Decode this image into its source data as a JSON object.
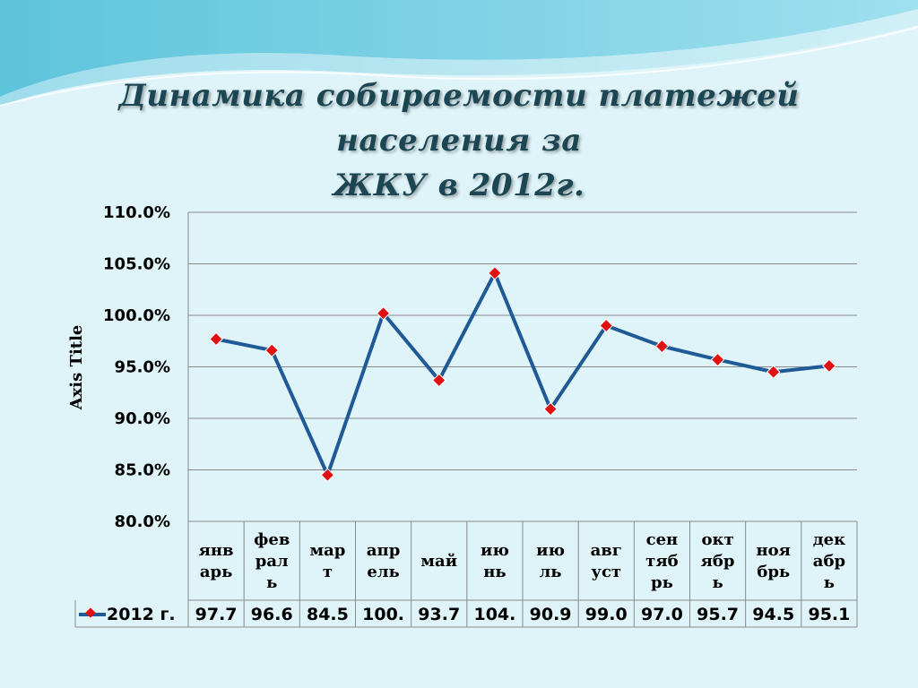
{
  "slide": {
    "title_line1": "Динамика собираемости платежей населения за",
    "title_line2": "ЖКУ в 2012г."
  },
  "chart_data": {
    "type": "line",
    "ylabel": "Axis Title",
    "ylim": [
      80,
      110
    ],
    "ytick_labels": [
      "80.0%",
      "85.0%",
      "90.0%",
      "95.0%",
      "100.0%",
      "105.0%",
      "110.0%"
    ],
    "categories": [
      [
        "янв",
        "арь"
      ],
      [
        "фев",
        "рал",
        "ь"
      ],
      [
        "мар",
        "т"
      ],
      [
        "апр",
        "ель"
      ],
      [
        "май"
      ],
      [
        "ию",
        "нь"
      ],
      [
        "ию",
        "ль"
      ],
      [
        "авг",
        "уст"
      ],
      [
        "сен",
        "тяб",
        "рь"
      ],
      [
        "окт",
        "ябр",
        "ь"
      ],
      [
        "ноя",
        "брь"
      ],
      [
        "дек",
        "абр",
        "ь"
      ]
    ],
    "series": [
      {
        "name": "2012 г.",
        "values": [
          97.7,
          96.6,
          84.5,
          100.2,
          93.7,
          104.1,
          90.9,
          99.0,
          97.0,
          95.7,
          94.5,
          95.1
        ],
        "table_labels": [
          "97.7",
          "96.6",
          "84.5",
          "100.",
          "93.7",
          "104.",
          "90.9",
          "99.0",
          "97.0",
          "95.7",
          "94.5",
          "95.1"
        ]
      }
    ],
    "grid": true,
    "data_table": true,
    "line_color": "#1f5a96",
    "marker_color": "#e01010"
  }
}
